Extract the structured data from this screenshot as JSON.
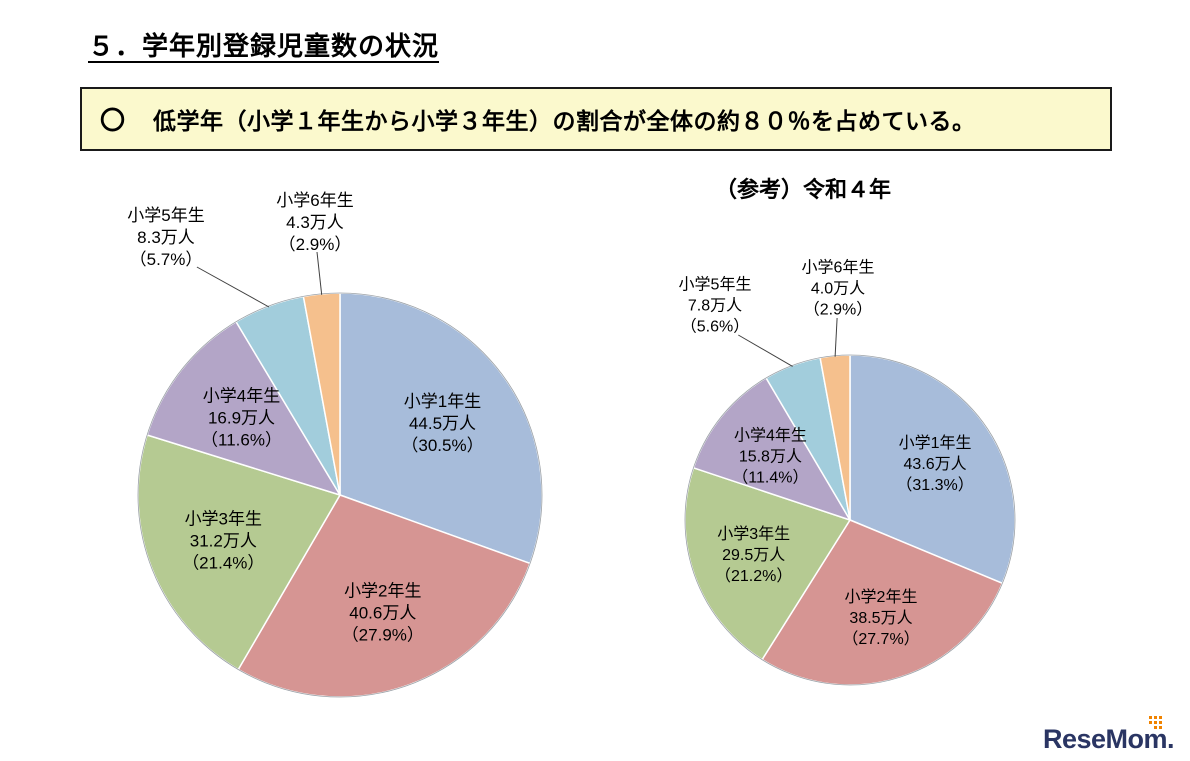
{
  "page": {
    "title": "５．学年別登録児童数の状況",
    "note_bullet": "〇",
    "note_text": "低学年（小学１年生から小学３年生）の割合が全体の約８０％を占めている。",
    "note_bg": "#fbf9cd"
  },
  "chart_data": [
    {
      "type": "pie",
      "name": "registered-children-by-grade-current",
      "title": "",
      "direction": "clockwise",
      "start_angle_deg": 0,
      "label_format": "name / amount / percent",
      "slices": [
        {
          "label": "小学1年生",
          "amount": "44.5万人",
          "value_pct": 30.5,
          "pct_label": "（30.5%）",
          "color": "#a7bcda"
        },
        {
          "label": "小学2年生",
          "amount": "40.6万人",
          "value_pct": 27.9,
          "pct_label": "（27.9%）",
          "color": "#d69593"
        },
        {
          "label": "小学3年生",
          "amount": "31.2万人",
          "value_pct": 21.4,
          "pct_label": "（21.4%）",
          "color": "#b5ca92"
        },
        {
          "label": "小学4年生",
          "amount": "16.9万人",
          "value_pct": 11.6,
          "pct_label": "（11.6%）",
          "color": "#b3a5c7"
        },
        {
          "label": "小学5年生",
          "amount": "8.3万人",
          "value_pct": 5.7,
          "pct_label": "（5.7%）",
          "color": "#a2cddc"
        },
        {
          "label": "小学6年生",
          "amount": "4.3万人",
          "value_pct": 2.9,
          "pct_label": "（2.9%）",
          "color": "#f5c08d"
        }
      ]
    },
    {
      "type": "pie",
      "name": "registered-children-by-grade-reiwa4",
      "title": "（参考）令和４年",
      "direction": "clockwise",
      "start_angle_deg": 0,
      "label_format": "name / amount / percent",
      "slices": [
        {
          "label": "小学1年生",
          "amount": "43.6万人",
          "value_pct": 31.3,
          "pct_label": "（31.3%）",
          "color": "#a7bcda"
        },
        {
          "label": "小学2年生",
          "amount": "38.5万人",
          "value_pct": 27.7,
          "pct_label": "（27.7%）",
          "color": "#d69593"
        },
        {
          "label": "小学3年生",
          "amount": "29.5万人",
          "value_pct": 21.2,
          "pct_label": "（21.2%）",
          "color": "#b5ca92"
        },
        {
          "label": "小学4年生",
          "amount": "15.8万人",
          "value_pct": 11.4,
          "pct_label": "（11.4%）",
          "color": "#b3a5c7"
        },
        {
          "label": "小学5年生",
          "amount": "7.8万人",
          "value_pct": 5.6,
          "pct_label": "（5.6%）",
          "color": "#a2cddc"
        },
        {
          "label": "小学6年生",
          "amount": "4.0万人",
          "value_pct": 2.9,
          "pct_label": "（2.9%）",
          "color": "#f5c08d"
        }
      ]
    }
  ],
  "branding": {
    "logo_text": "ReseMom.",
    "logo_color": "#2a3563",
    "logo_accent_color": "#f08300"
  }
}
